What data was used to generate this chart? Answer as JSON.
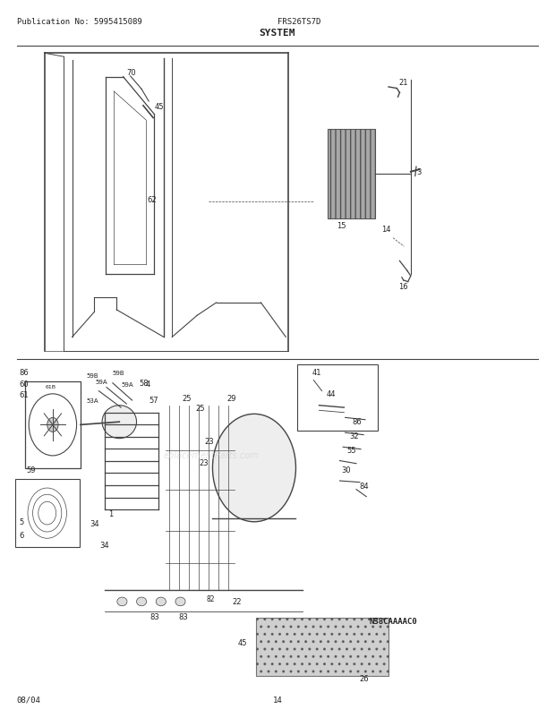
{
  "title": "SYSTEM",
  "pub_no": "Publication No: 5995415089",
  "model": "FRS26TS7D",
  "date": "08/04",
  "page": "14",
  "watermark": "eplacementParts.com",
  "diagram_code": "N58CAAAAC0",
  "bg_color": "#ffffff",
  "line_color": "#444444",
  "text_color": "#222222"
}
